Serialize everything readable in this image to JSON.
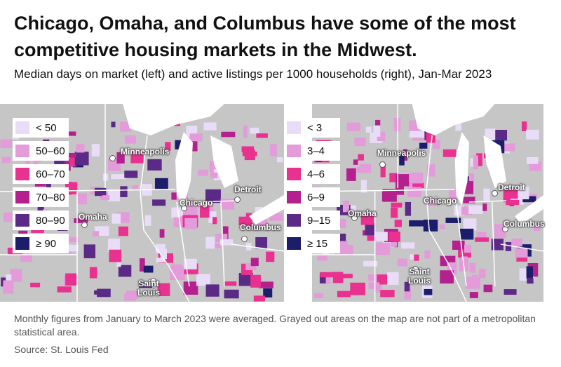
{
  "header": {
    "title": "Chicago, Omaha, and Columbus have some of the most competitive housing markets in the Midwest.",
    "subtitle": "Median days on market (left) and active listings per 1000 households (right), Jan-Mar 2023"
  },
  "maps": [
    {
      "legend": [
        {
          "label": "< 50",
          "color": "#e9dcf7"
        },
        {
          "label": "50–60",
          "color": "#e39bd9"
        },
        {
          "label": "60–70",
          "color": "#e9318f"
        },
        {
          "label": "70–80",
          "color": "#b5208f"
        },
        {
          "label": "80–90",
          "color": "#5a2a86"
        },
        {
          "label": "≥ 90",
          "color": "#1c1d6b"
        }
      ],
      "cities": [
        "Minneapolis",
        "Omaha",
        "Chicago",
        "Detroit",
        "Columbus",
        "Saint Louis"
      ]
    },
    {
      "legend": [
        {
          "label": "< 3",
          "color": "#e9dcf7"
        },
        {
          "label": "3–4",
          "color": "#e39bd9"
        },
        {
          "label": "4–6",
          "color": "#e9318f"
        },
        {
          "label": "6–9",
          "color": "#b5208f"
        },
        {
          "label": "9–15",
          "color": "#5a2a86"
        },
        {
          "label": "≥ 15",
          "color": "#1c1d6b"
        }
      ],
      "cities": [
        "Minneapolis",
        "Omaha",
        "Chicago",
        "Detroit",
        "Columbus",
        "Saint Louis"
      ]
    }
  ],
  "footnote": "Monthly figures from January to March 2023 were averaged. Grayed out areas on the map are not part of a metropolitan statistical area.",
  "source": "Source: St. Louis Fed"
}
